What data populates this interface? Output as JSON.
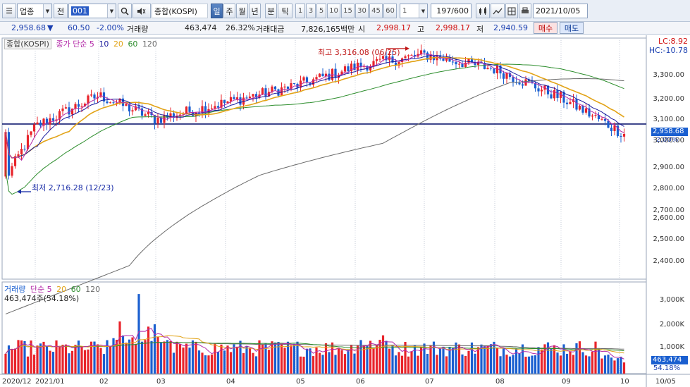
{
  "toolbar": {
    "category_label": "업종",
    "prev_label": "전",
    "code_value": "001",
    "index_name": "종합(KOSPI)",
    "period_tabs": [
      "일",
      "주",
      "월",
      "년",
      "분",
      "틱"
    ],
    "number_buttons": [
      "1",
      "3",
      "5",
      "10",
      "15",
      "30",
      "45",
      "60"
    ],
    "interval_value": "1",
    "count_value": "197/600",
    "date_value": "2021/10/05"
  },
  "quote": {
    "price": "2,958.68",
    "change": "60.50",
    "change_pct": "-2.00%",
    "volume_label": "거래량",
    "volume": "463,474",
    "volume_pct": "26.32%",
    "amount_label": "거래대금",
    "amount": "7,826,165백만",
    "open_label": "시",
    "open": "2,998.17",
    "high_label": "고",
    "high": "2,998.17",
    "low_label": "저",
    "low": "2,940.59",
    "buy_label": "매수",
    "sell_label": "매도"
  },
  "price_panel": {
    "legend_name": "종합(KOSPI)",
    "legend_ma": "종가 단순 5",
    "ma_periods": [
      "10",
      "20",
      "60",
      "120"
    ],
    "lc_label": "LC:8.92",
    "hc_label": "HC:-10.78",
    "high_marker": "최고 3,316.08 (06/25)",
    "low_marker": "최저 2,716.28 (12/23)",
    "current_price": "2,958.68",
    "current_pct": "-2.00%",
    "y_ticks": [
      "3,300.00",
      "3,200.00",
      "3,100.00",
      "3,000.00",
      "2,900.00",
      "2,800.00",
      "2,700.00",
      "2,600.00",
      "2,500.00",
      "2,400.00"
    ]
  },
  "volume_panel": {
    "legend_name": "거래량",
    "legend_ma": "단순 5",
    "ma_periods": [
      "20",
      "60",
      "120"
    ],
    "value_text": "463,474주(54.18%)",
    "y_ticks": [
      "3,000K",
      "2,000K",
      "1,000K"
    ],
    "current_value": "463,474",
    "current_pct": "54.18%"
  },
  "x_ticks": [
    "2020/12",
    "2021/01",
    "02",
    "03",
    "04",
    "05",
    "06",
    "07",
    "08",
    "09",
    "10",
    "10/05"
  ],
  "colors": {
    "up": "#e8242b",
    "down": "#1a5fd0",
    "ma5": "#b32aa8",
    "ma10": "#1b1b9e",
    "ma20": "#e2a317",
    "ma60": "#2c8d2c",
    "ma120": "#6a6a6a",
    "baseline": "#101a70"
  },
  "chart_data": {
    "type": "candlestick",
    "title": "종합(KOSPI)",
    "x": [
      "2020/12",
      "2021/01",
      "02",
      "03",
      "04",
      "05",
      "06",
      "07",
      "08",
      "09",
      "10"
    ],
    "close_approx": [
      2780,
      2990,
      3120,
      3020,
      3090,
      3160,
      3240,
      3290,
      3230,
      3110,
      2958.68
    ],
    "high_marker": {
      "value": 3316.08,
      "date": "06/25"
    },
    "low_marker": {
      "value": 2716.28,
      "date": "12/23"
    },
    "ylim": [
      2350,
      3360
    ],
    "volume_ylim_k": [
      0,
      3800
    ]
  }
}
